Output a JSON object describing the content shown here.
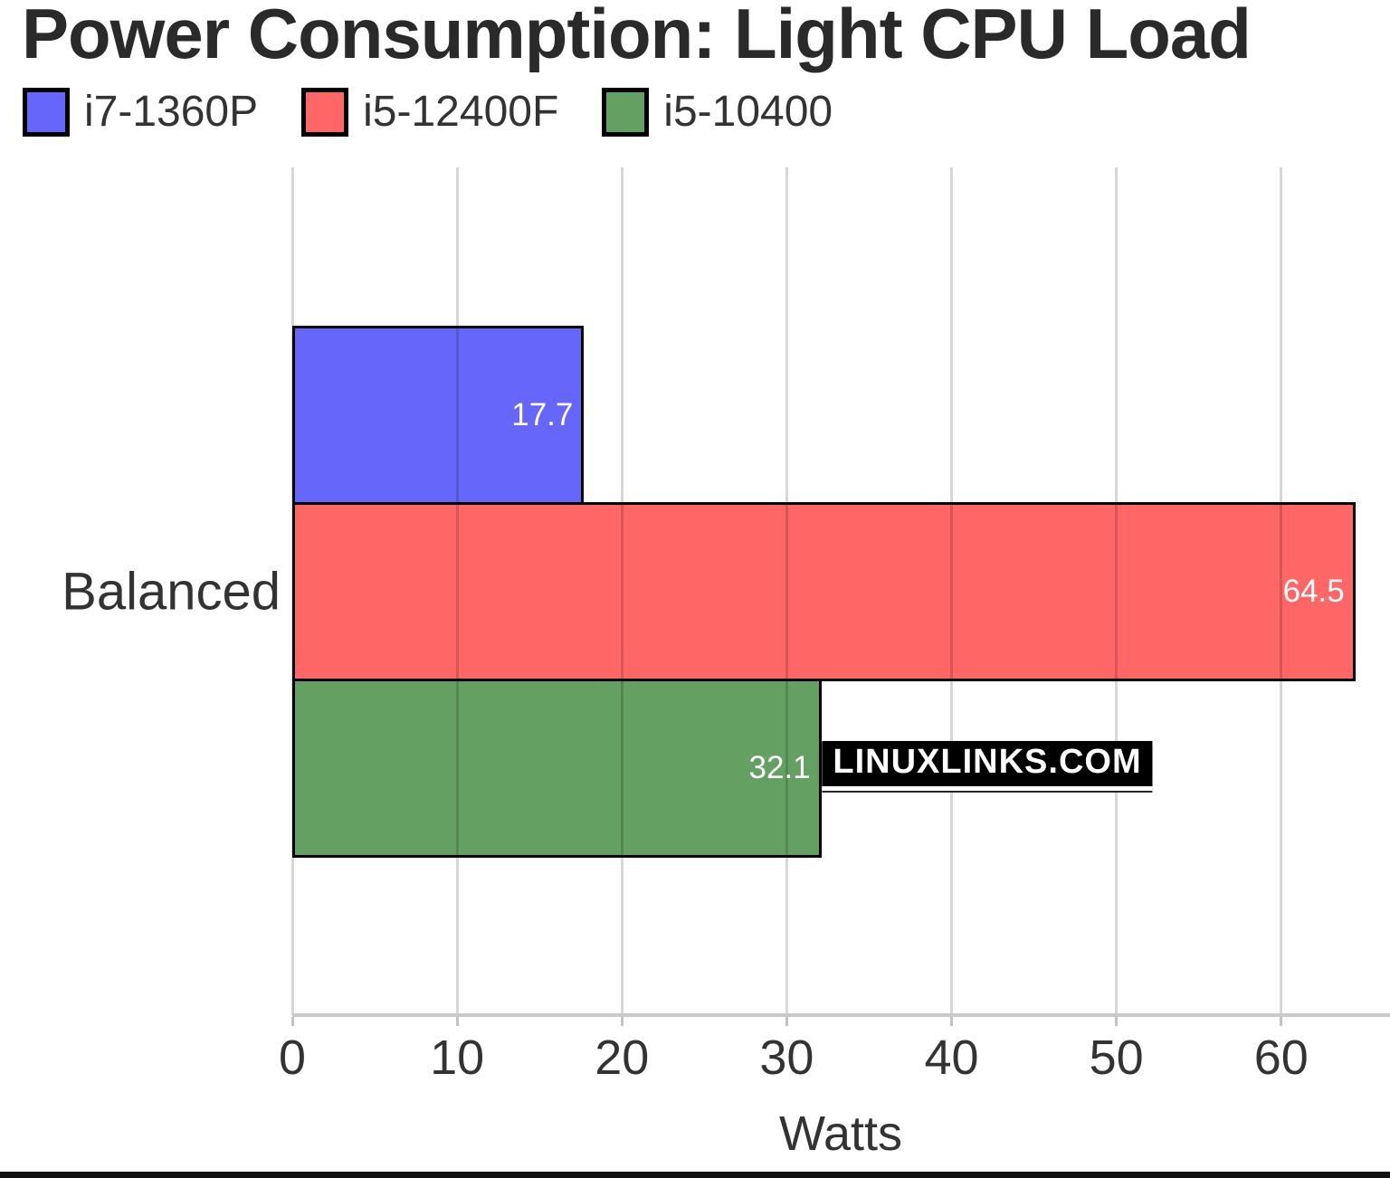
{
  "title": "Power Consumption: Light CPU Load",
  "watermark": "LINUXLINKS.COM",
  "chart_data": {
    "type": "bar",
    "orientation": "horizontal",
    "title": "Power Consumption: Light CPU Load",
    "categories": [
      "Balanced"
    ],
    "series": [
      {
        "name": "i7-1360P",
        "color": "#6667fa",
        "values": [
          17.7
        ]
      },
      {
        "name": "i5-12400F",
        "color": "#ff6666",
        "values": [
          64.5
        ]
      },
      {
        "name": "i5-10400",
        "color": "#65a063",
        "values": [
          32.1
        ]
      }
    ],
    "xlabel": "Watts",
    "ylabel": "",
    "x_ticks": [
      0,
      10,
      20,
      30,
      40,
      50,
      60
    ],
    "xlim": [
      0,
      66.6
    ],
    "grid": true,
    "legend_position": "top",
    "bar_border_color": "#000000",
    "value_label_color": "#ffffff"
  },
  "colors": {
    "background": "#ffffff",
    "grid_line": "#d6d6d6",
    "axis_line": "#c9c9c9",
    "text": "#333333",
    "title_text": "#2a2a2a",
    "watermark_bg": "#000000",
    "watermark_text": "#ffffff",
    "bottom_bar": "#111111"
  }
}
